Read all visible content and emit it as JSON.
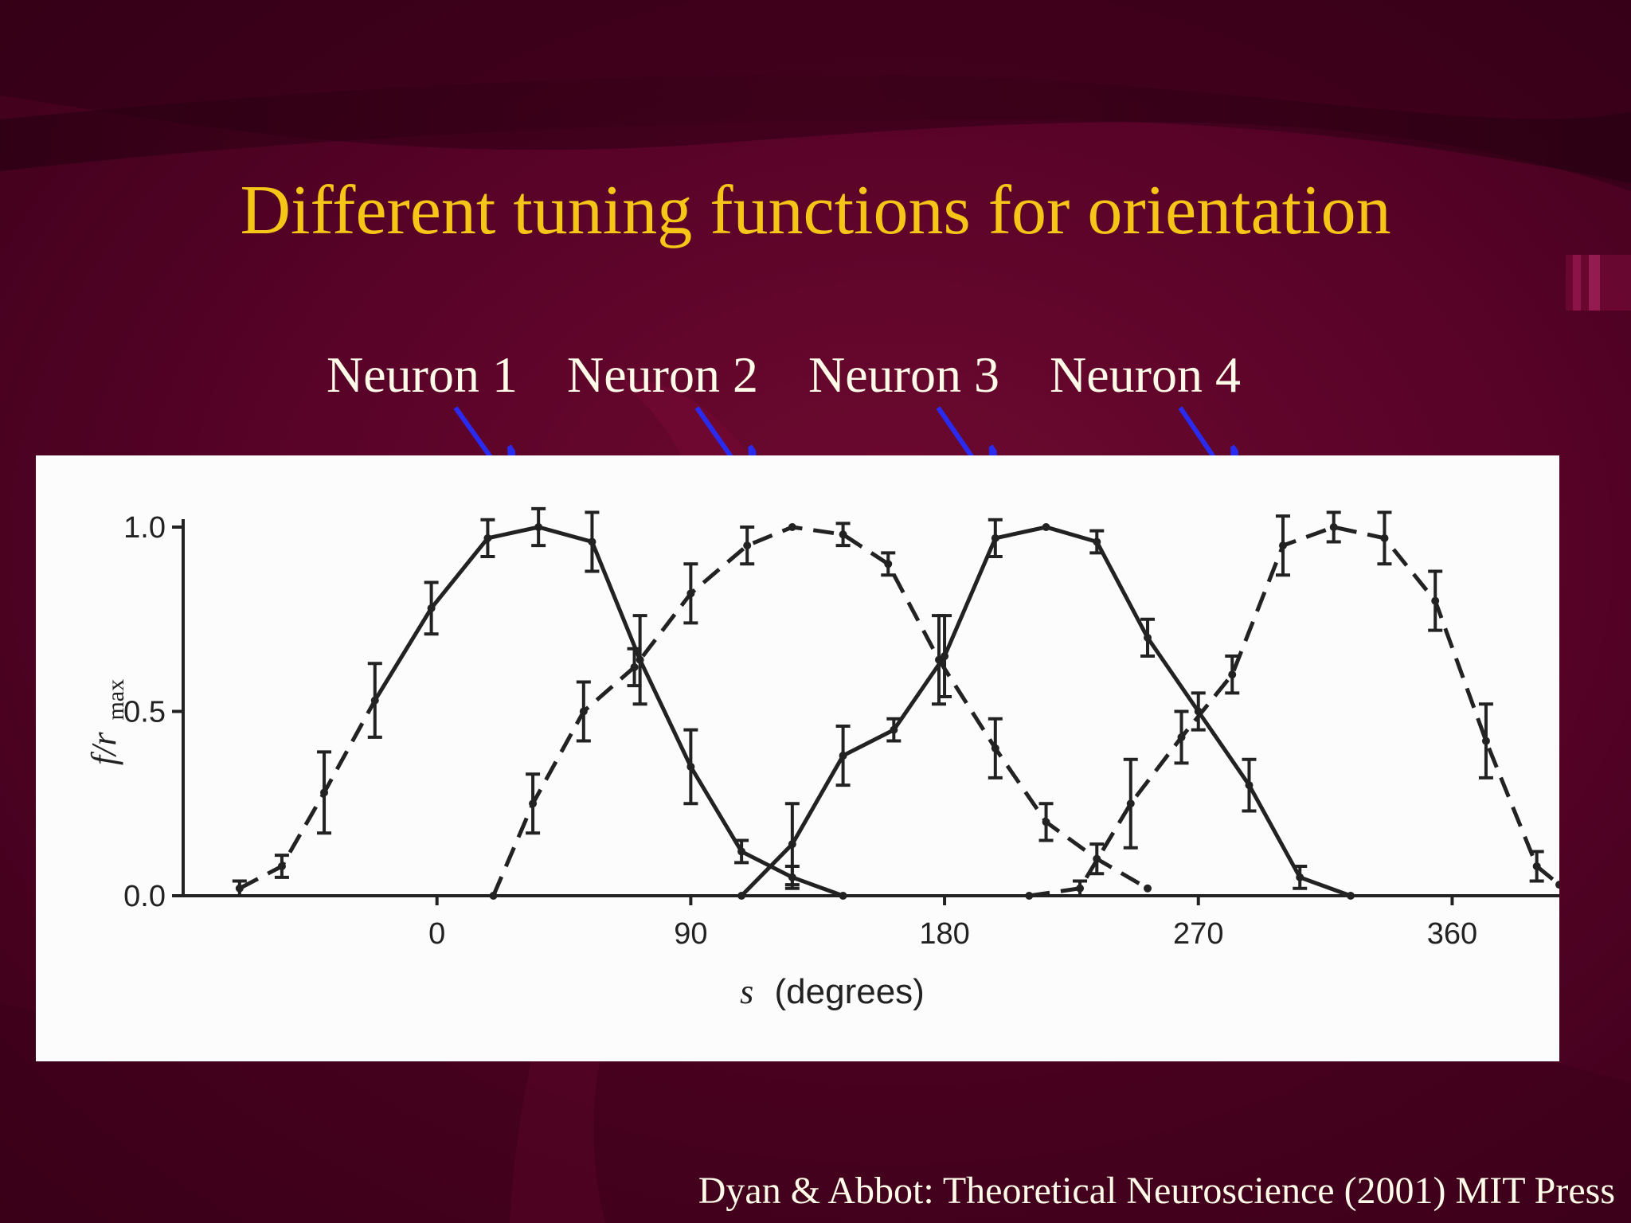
{
  "slide": {
    "title": "Different tuning functions for orientation",
    "citation": "Dyan & Abbot: Theoretical Neuroscience (2001) MIT Press",
    "neuron_labels": [
      "Neuron 1",
      "Neuron 2",
      "Neuron 3",
      "Neuron 4"
    ],
    "colors": {
      "background": "#5a0328",
      "title": "#f5c518",
      "text": "#fffbe8",
      "arrow": "#2b2bf0"
    }
  },
  "chart_data": {
    "type": "line",
    "xlabel_var": "s",
    "xlabel_unit": "(degrees)",
    "ylabel": "f/r",
    "ylabel_sub": "max",
    "xlim": [
      -90,
      398
    ],
    "ylim": [
      0,
      1.0
    ],
    "xticks": [
      0,
      90,
      180,
      270,
      360
    ],
    "yticks": [
      "0.0",
      "0.5",
      "1.0"
    ],
    "series": [
      {
        "style": "solid-with-dashed-tails",
        "x": [
          -70,
          -55,
          -40,
          -22,
          -2,
          18,
          36,
          55,
          72,
          90,
          108,
          126,
          144
        ],
        "y": [
          0.02,
          0.08,
          0.28,
          0.53,
          0.78,
          0.97,
          1.0,
          0.96,
          0.64,
          0.35,
          0.12,
          0.05,
          0.0
        ],
        "err": [
          0.02,
          0.03,
          0.11,
          0.1,
          0.07,
          0.05,
          0.05,
          0.08,
          0.12,
          0.1,
          0.03,
          0.03,
          0.0
        ],
        "dashed_x_max": -30
      },
      {
        "style": "dashed",
        "x": [
          20,
          34,
          52,
          70,
          90,
          110,
          126,
          144,
          160,
          178,
          198,
          216,
          234,
          252
        ],
        "y": [
          0.0,
          0.25,
          0.5,
          0.62,
          0.82,
          0.95,
          1.0,
          0.98,
          0.9,
          0.64,
          0.4,
          0.2,
          0.1,
          0.02
        ],
        "err": [
          0.0,
          0.08,
          0.08,
          0.05,
          0.08,
          0.05,
          0.0,
          0.03,
          0.03,
          0.12,
          0.08,
          0.05,
          0.04,
          0.0
        ]
      },
      {
        "style": "solid",
        "x": [
          108,
          126,
          144,
          162,
          180,
          198,
          216,
          234,
          252,
          270,
          288,
          306,
          324
        ],
        "y": [
          0.0,
          0.14,
          0.38,
          0.45,
          0.65,
          0.97,
          1.0,
          0.96,
          0.7,
          0.5,
          0.3,
          0.05,
          0.0
        ],
        "err": [
          0.0,
          0.11,
          0.08,
          0.03,
          0.11,
          0.05,
          0.0,
          0.03,
          0.05,
          0.05,
          0.07,
          0.03,
          0.0
        ]
      },
      {
        "style": "dashed",
        "x": [
          210,
          228,
          246,
          264,
          282,
          300,
          318,
          336,
          354,
          372,
          390,
          398
        ],
        "y": [
          0.0,
          0.02,
          0.25,
          0.43,
          0.6,
          0.95,
          1.0,
          0.97,
          0.8,
          0.42,
          0.08,
          0.03
        ],
        "err": [
          0.0,
          0.02,
          0.12,
          0.07,
          0.05,
          0.08,
          0.04,
          0.07,
          0.08,
          0.1,
          0.04,
          0.0
        ]
      }
    ]
  }
}
